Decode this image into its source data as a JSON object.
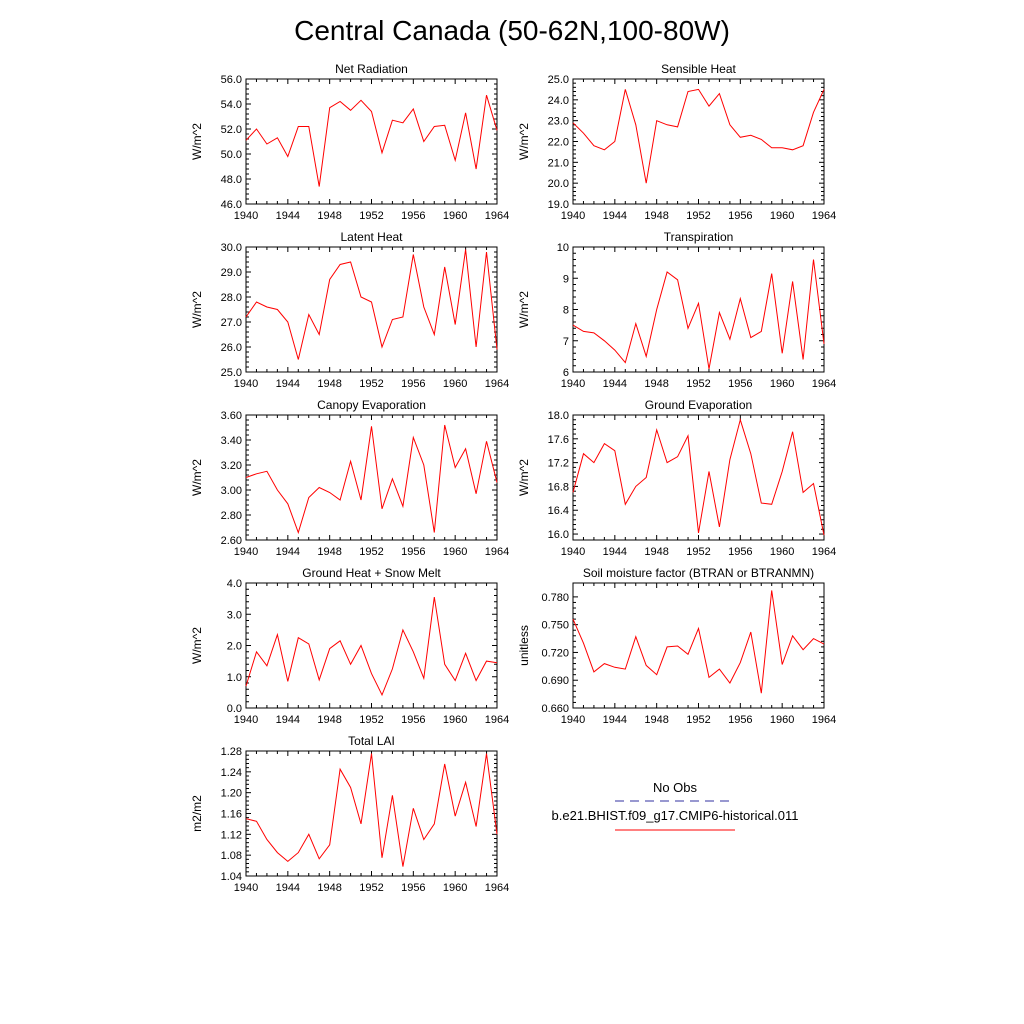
{
  "figure": {
    "title": "Central Canada (50-62N,100-80W)"
  },
  "legend": {
    "obs_label": "No Obs",
    "model_label": "b.e21.BHIST.f09_g17.CMIP6-historical.011",
    "obs_color": "#3030a0",
    "model_color": "#ff0000"
  },
  "chart_data": [
    {
      "type": "line",
      "title": "Net Radiation",
      "ylabel": "W/m^2",
      "ylim": [
        46.0,
        56.0
      ],
      "yticks": [
        "46.0",
        "48.0",
        "50.0",
        "52.0",
        "54.0",
        "56.0"
      ],
      "xlim": [
        1940,
        1964
      ],
      "xticks": [
        "1940",
        "1944",
        "1948",
        "1952",
        "1956",
        "1960",
        "1964"
      ],
      "series": [
        {
          "color": "#ff0000",
          "values": [
            51.1,
            52.0,
            50.8,
            51.3,
            49.8,
            52.2,
            52.2,
            47.4,
            53.7,
            54.2,
            53.5,
            54.3,
            53.4,
            50.1,
            52.7,
            52.5,
            53.6,
            51.0,
            52.2,
            52.3,
            49.5,
            53.3,
            48.8,
            54.7,
            51.9
          ]
        }
      ]
    },
    {
      "type": "line",
      "title": "Sensible Heat",
      "ylabel": "W/m^2",
      "ylim": [
        19.0,
        25.0
      ],
      "yticks": [
        "19.0",
        "20.0",
        "21.0",
        "22.0",
        "23.0",
        "24.0",
        "25.0"
      ],
      "xlim": [
        1940,
        1964
      ],
      "xticks": [
        "1940",
        "1944",
        "1948",
        "1952",
        "1956",
        "1960",
        "1964"
      ],
      "series": [
        {
          "color": "#ff0000",
          "values": [
            22.9,
            22.4,
            21.8,
            21.6,
            22.0,
            24.5,
            22.8,
            20.0,
            23.0,
            22.8,
            22.7,
            24.4,
            24.5,
            23.7,
            24.3,
            22.8,
            22.2,
            22.3,
            22.1,
            21.7,
            21.7,
            21.6,
            21.8,
            23.4,
            24.5
          ]
        }
      ]
    },
    {
      "type": "line",
      "title": "Latent Heat",
      "ylabel": "W/m^2",
      "ylim": [
        25.0,
        30.0
      ],
      "yticks": [
        "25.0",
        "26.0",
        "27.0",
        "28.0",
        "29.0",
        "30.0"
      ],
      "xlim": [
        1940,
        1964
      ],
      "xticks": [
        "1940",
        "1944",
        "1948",
        "1952",
        "1956",
        "1960",
        "1964"
      ],
      "series": [
        {
          "color": "#ff0000",
          "values": [
            27.2,
            27.8,
            27.6,
            27.5,
            27.0,
            25.5,
            27.3,
            26.5,
            28.7,
            29.3,
            29.4,
            28.0,
            27.8,
            26.0,
            27.1,
            27.2,
            29.7,
            27.6,
            26.5,
            29.2,
            26.9,
            29.9,
            26.0,
            29.8,
            25.9
          ]
        }
      ]
    },
    {
      "type": "line",
      "title": "Transpiration",
      "ylabel": "W/m^2",
      "ylim": [
        6,
        10
      ],
      "yticks": [
        "6",
        "7",
        "8",
        "9",
        "10"
      ],
      "xlim": [
        1940,
        1964
      ],
      "xticks": [
        "1940",
        "1944",
        "1948",
        "1952",
        "1956",
        "1960",
        "1964"
      ],
      "series": [
        {
          "color": "#ff0000",
          "values": [
            7.5,
            7.3,
            7.25,
            7.0,
            6.7,
            6.3,
            7.55,
            6.5,
            8.0,
            9.2,
            8.95,
            7.4,
            8.2,
            6.1,
            7.9,
            7.05,
            8.35,
            7.1,
            7.3,
            9.15,
            6.6,
            8.9,
            6.4,
            9.6,
            6.9
          ]
        }
      ]
    },
    {
      "type": "line",
      "title": "Canopy Evaporation",
      "ylabel": "W/m^2",
      "ylim": [
        2.6,
        3.6
      ],
      "yticks": [
        "2.60",
        "2.80",
        "3.00",
        "3.20",
        "3.40",
        "3.60"
      ],
      "xlim": [
        1940,
        1964
      ],
      "xticks": [
        "1940",
        "1944",
        "1948",
        "1952",
        "1956",
        "1960",
        "1964"
      ],
      "series": [
        {
          "color": "#ff0000",
          "values": [
            3.1,
            3.13,
            3.15,
            3.0,
            2.89,
            2.66,
            2.94,
            3.02,
            2.98,
            2.92,
            3.23,
            2.92,
            3.51,
            2.85,
            3.09,
            2.87,
            3.42,
            3.2,
            2.66,
            3.52,
            3.18,
            3.33,
            2.97,
            3.39,
            3.06
          ]
        }
      ]
    },
    {
      "type": "line",
      "title": "Ground Evaporation",
      "ylabel": "W/m^2",
      "ylim": [
        15.9,
        18.0
      ],
      "yticks": [
        "16.0",
        "16.4",
        "16.8",
        "17.2",
        "17.6",
        "18.0"
      ],
      "yticks_at": [
        16.0,
        16.4,
        16.8,
        17.2,
        17.6,
        18.0
      ],
      "xlim": [
        1940,
        1964
      ],
      "xticks": [
        "1940",
        "1944",
        "1948",
        "1952",
        "1956",
        "1960",
        "1964"
      ],
      "series": [
        {
          "color": "#ff0000",
          "values": [
            16.7,
            17.35,
            17.2,
            17.52,
            17.4,
            16.5,
            16.8,
            16.95,
            17.75,
            17.2,
            17.3,
            17.65,
            16.02,
            17.05,
            16.12,
            17.25,
            17.92,
            17.35,
            16.52,
            16.5,
            17.05,
            17.72,
            16.7,
            16.85,
            15.98
          ]
        }
      ]
    },
    {
      "type": "line",
      "title": "Ground Heat + Snow Melt",
      "ylabel": "W/m^2",
      "ylim": [
        0.0,
        4.0
      ],
      "yticks": [
        "0.0",
        "1.0",
        "2.0",
        "3.0",
        "4.0"
      ],
      "xlim": [
        1940,
        1964
      ],
      "xticks": [
        "1940",
        "1944",
        "1948",
        "1952",
        "1956",
        "1960",
        "1964"
      ],
      "series": [
        {
          "color": "#ff0000",
          "values": [
            0.7,
            1.8,
            1.35,
            2.35,
            0.85,
            2.25,
            2.05,
            0.9,
            1.9,
            2.15,
            1.4,
            2.0,
            1.1,
            0.42,
            1.25,
            2.5,
            1.8,
            0.95,
            3.55,
            1.4,
            0.88,
            1.75,
            0.88,
            1.5,
            1.45
          ]
        }
      ]
    },
    {
      "type": "line",
      "title": "Soil moisture factor (BTRAN or BTRANMN)",
      "ylabel": "unitless",
      "ylim": [
        0.66,
        0.795
      ],
      "yticks": [
        "0.660",
        "0.690",
        "0.720",
        "0.750",
        "0.780"
      ],
      "yticks_at": [
        0.66,
        0.69,
        0.72,
        0.75,
        0.78
      ],
      "xlim": [
        1940,
        1964
      ],
      "xticks": [
        "1940",
        "1944",
        "1948",
        "1952",
        "1956",
        "1960",
        "1964"
      ],
      "series": [
        {
          "color": "#ff0000",
          "values": [
            0.756,
            0.73,
            0.699,
            0.708,
            0.704,
            0.702,
            0.737,
            0.706,
            0.696,
            0.726,
            0.727,
            0.718,
            0.746,
            0.693,
            0.702,
            0.687,
            0.709,
            0.742,
            0.676,
            0.787,
            0.707,
            0.738,
            0.723,
            0.735,
            0.729
          ]
        }
      ]
    },
    {
      "type": "line",
      "title": "Total LAI",
      "ylabel": "m2/m2",
      "ylim": [
        1.04,
        1.28
      ],
      "yticks": [
        "1.04",
        "1.08",
        "1.12",
        "1.16",
        "1.20",
        "1.24",
        "1.28"
      ],
      "xlim": [
        1940,
        1964
      ],
      "xticks": [
        "1940",
        "1944",
        "1948",
        "1952",
        "1956",
        "1960",
        "1964"
      ],
      "series": [
        {
          "color": "#ff0000",
          "values": [
            1.15,
            1.145,
            1.11,
            1.085,
            1.068,
            1.085,
            1.12,
            1.073,
            1.1,
            1.245,
            1.21,
            1.14,
            1.275,
            1.075,
            1.195,
            1.058,
            1.17,
            1.11,
            1.14,
            1.255,
            1.155,
            1.22,
            1.135,
            1.275,
            1.12
          ]
        }
      ]
    }
  ]
}
